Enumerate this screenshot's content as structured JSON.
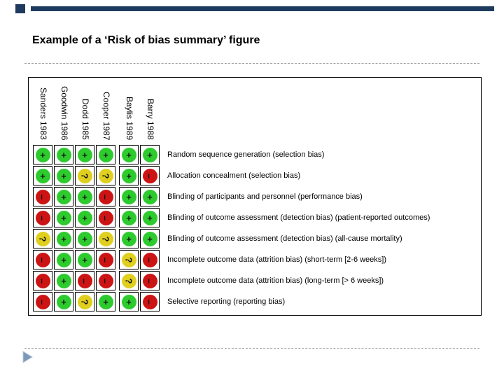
{
  "slide": {
    "title": "Example of a ‘Risk of bias summary’ figure",
    "accent_color": "#1f3a5f",
    "divider_color": "#9b9b9b",
    "triangle_fill": "#7d99b8",
    "triangle_edge": "#b7c9dc"
  },
  "chart_data": {
    "type": "table",
    "title": "Risk of bias summary",
    "columns": [
      "Sanders 1983",
      "Goodwin 1986",
      "Dodd 1985",
      "Cooper 1987",
      "Baylis 1989",
      "Barry 1988"
    ],
    "rows": [
      {
        "label": "Random sequence generation (selection bias)",
        "judgements": [
          "+",
          "+",
          "+",
          "+",
          "+",
          "+"
        ]
      },
      {
        "label": "Allocation concealment (selection bias)",
        "judgements": [
          "+",
          "+",
          "?",
          "?",
          "+",
          "-"
        ]
      },
      {
        "label": "Blinding of participants and personnel (performance bias)",
        "judgements": [
          "-",
          "+",
          "+",
          "-",
          "+",
          "+"
        ]
      },
      {
        "label": "Blinding of outcome assessment (detection bias) (patient-reported outcomes)",
        "judgements": [
          "-",
          "+",
          "+",
          "-",
          "+",
          "+"
        ]
      },
      {
        "label": "Blinding of outcome assessment (detection bias) (all-cause mortality)",
        "judgements": [
          "?",
          "+",
          "+",
          "?",
          "+",
          "+"
        ]
      },
      {
        "label": "Incomplete outcome data (attrition bias) (short-term [2-6 weeks])",
        "judgements": [
          "-",
          "+",
          "+",
          "-",
          "?",
          "-"
        ]
      },
      {
        "label": "Incomplete outcome data (attrition bias) (long-term [> 6 weeks])",
        "judgements": [
          "-",
          "+",
          "-",
          "-",
          "?",
          "-"
        ]
      },
      {
        "label": "Selective reporting (reporting bias)",
        "judgements": [
          "-",
          "+",
          "?",
          "+",
          "+",
          "-"
        ]
      }
    ],
    "colors": {
      "low_risk": "#2dcb2d",
      "unclear_risk": "#e0cf1e",
      "high_risk": "#cc1414"
    },
    "symbols": {
      "low_risk": "+",
      "unclear_risk": "?",
      "high_risk": "-"
    },
    "layout": {
      "grid": "off",
      "column_labels_rotated_deg": 90
    }
  }
}
